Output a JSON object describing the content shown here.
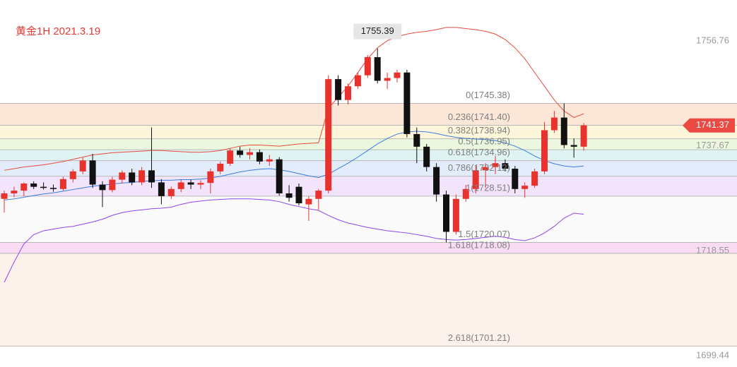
{
  "chart_data": {
    "type": "candlestick",
    "title": "黄金1H 2021.3.19",
    "ylim": [
      1697.4,
      1764.2
    ],
    "yticks": [
      1756.76,
      1737.67,
      1718.55,
      1699.44
    ],
    "grid": false,
    "up_color": "#e8322e",
    "down_color": "#111111",
    "open": [
      1728.0,
      1729.0,
      1729.5,
      1730.8,
      1730.2,
      1730.0,
      1729.8,
      1731.6,
      1733.0,
      1735.0,
      1730.6,
      1729.6,
      1731.5,
      1732.8,
      1731.0,
      1733.2,
      1731.0,
      1728.5,
      1729.8,
      1731.0,
      1730.6,
      1730.9,
      1733.0,
      1734.4,
      1736.8,
      1736.0,
      1736.5,
      1734.8,
      1735.2,
      1729.0,
      1730.2,
      1727.0,
      1728.0,
      1729.5,
      1749.8,
      1746.0,
      1748.5,
      1750.5,
      1753.8,
      1749.5,
      1750.0,
      1751.0,
      1739.8,
      1737.5,
      1733.8,
      1728.8,
      1722.0,
      1728.0,
      1729.8,
      1733.2,
      1733.8,
      1734.5,
      1733.5,
      1729.8,
      1730.4,
      1733.0,
      1740.5,
      1742.8,
      1737.8,
      1737.5
    ],
    "high": [
      1729.5,
      1730.2,
      1731.0,
      1731.2,
      1731.0,
      1730.6,
      1732.0,
      1733.4,
      1735.5,
      1736.2,
      1731.2,
      1732.0,
      1733.2,
      1733.5,
      1733.8,
      1741.0,
      1731.6,
      1730.2,
      1731.5,
      1731.5,
      1731.4,
      1733.5,
      1734.8,
      1737.2,
      1737.5,
      1737.2,
      1737.0,
      1736.0,
      1735.6,
      1730.5,
      1730.8,
      1728.5,
      1729.8,
      1750.5,
      1750.5,
      1749.0,
      1751.0,
      1754.2,
      1755.39,
      1751.0,
      1751.5,
      1751.5,
      1741.0,
      1738.0,
      1734.5,
      1729.5,
      1728.8,
      1730.5,
      1734.0,
      1734.5,
      1735.8,
      1735.2,
      1734.0,
      1731.0,
      1733.5,
      1742.0,
      1744.0,
      1745.38,
      1739.0,
      1741.8
    ],
    "low": [
      1725.5,
      1728.3,
      1728.5,
      1729.8,
      1729.7,
      1729.3,
      1729.5,
      1731.0,
      1732.5,
      1730.0,
      1726.5,
      1729.2,
      1730.8,
      1730.5,
      1730.5,
      1730.0,
      1727.0,
      1728.0,
      1729.2,
      1729.8,
      1729.8,
      1729.0,
      1732.5,
      1734.0,
      1735.5,
      1735.2,
      1734.3,
      1734.0,
      1728.6,
      1727.5,
      1726.8,
      1724.0,
      1726.0,
      1729.0,
      1745.0,
      1745.2,
      1748.0,
      1750.0,
      1749.0,
      1748.0,
      1749.2,
      1739.2,
      1734.5,
      1733.0,
      1727.5,
      1720.07,
      1721.5,
      1727.5,
      1729.0,
      1730.0,
      1732.5,
      1733.0,
      1729.0,
      1728.2,
      1730.0,
      1732.5,
      1740.0,
      1737.2,
      1735.5,
      1736.8
    ],
    "close": [
      1729.0,
      1729.5,
      1730.8,
      1730.2,
      1730.0,
      1729.8,
      1731.6,
      1733.0,
      1735.0,
      1730.6,
      1729.6,
      1731.5,
      1732.8,
      1731.0,
      1733.2,
      1731.0,
      1728.5,
      1729.8,
      1731.0,
      1730.6,
      1730.9,
      1733.0,
      1734.4,
      1736.8,
      1736.0,
      1736.5,
      1734.8,
      1735.2,
      1729.0,
      1728.2,
      1727.2,
      1728.0,
      1729.5,
      1749.8,
      1746.0,
      1748.5,
      1750.5,
      1753.8,
      1749.5,
      1750.0,
      1751.0,
      1739.8,
      1737.5,
      1733.8,
      1728.8,
      1722.0,
      1728.0,
      1729.8,
      1733.2,
      1733.8,
      1734.5,
      1733.5,
      1729.8,
      1730.4,
      1733.0,
      1740.5,
      1742.8,
      1737.8,
      1737.5,
      1741.37
    ],
    "bands": [
      {
        "color": "#e74c3c",
        "values": [
          1733.2,
          1733.5,
          1733.8,
          1734.0,
          1734.2,
          1734.5,
          1734.8,
          1735.2,
          1735.6,
          1736.0,
          1736.2,
          1736.4,
          1736.5,
          1736.6,
          1736.7,
          1736.8,
          1736.8,
          1736.7,
          1736.6,
          1736.5,
          1736.5,
          1736.6,
          1736.8,
          1737.2,
          1737.6,
          1737.8,
          1737.8,
          1737.7,
          1737.6,
          1737.8,
          1738.0,
          1738.1,
          1738.2,
          1744.5,
          1746.5,
          1748.5,
          1751.0,
          1753.5,
          1755.5,
          1756.8,
          1757.5,
          1758.0,
          1758.3,
          1758.5,
          1758.8,
          1759.2,
          1759.2,
          1759.0,
          1758.8,
          1758.5,
          1758.0,
          1757.0,
          1755.5,
          1753.5,
          1751.0,
          1748.5,
          1746.0,
          1744.0,
          1742.8,
          1743.5
        ]
      },
      {
        "color": "#3b7de0",
        "values": [
          1727.8,
          1728.0,
          1728.3,
          1728.6,
          1728.9,
          1729.1,
          1729.4,
          1729.7,
          1730.0,
          1730.3,
          1730.5,
          1730.7,
          1730.9,
          1731.0,
          1731.2,
          1731.3,
          1731.4,
          1731.4,
          1731.5,
          1731.5,
          1731.6,
          1731.8,
          1732.1,
          1732.5,
          1732.9,
          1733.2,
          1733.4,
          1733.5,
          1733.3,
          1733.0,
          1732.6,
          1732.2,
          1731.9,
          1732.5,
          1733.5,
          1734.5,
          1735.6,
          1736.8,
          1738.0,
          1739.0,
          1739.8,
          1740.2,
          1740.3,
          1740.2,
          1739.9,
          1739.5,
          1739.2,
          1739.0,
          1738.9,
          1738.8,
          1738.6,
          1738.2,
          1737.6,
          1736.8,
          1735.8,
          1735.0,
          1734.4,
          1734.0,
          1733.8,
          1734.0
        ]
      },
      {
        "color": "#8e44ec",
        "values": [
          1712.8,
          1716.5,
          1719.8,
          1721.5,
          1722.2,
          1722.5,
          1722.8,
          1723.0,
          1723.4,
          1723.8,
          1724.3,
          1725.0,
          1725.5,
          1725.8,
          1726.0,
          1726.2,
          1726.3,
          1726.5,
          1727.0,
          1727.4,
          1727.6,
          1727.8,
          1727.9,
          1728.0,
          1728.0,
          1728.0,
          1727.9,
          1727.8,
          1727.5,
          1727.0,
          1726.6,
          1726.2,
          1725.9,
          1725.0,
          1724.2,
          1723.6,
          1723.2,
          1722.8,
          1722.5,
          1722.2,
          1722.0,
          1721.8,
          1721.5,
          1721.2,
          1720.8,
          1720.6,
          1720.5,
          1720.6,
          1720.8,
          1721.0,
          1721.2,
          1721.0,
          1720.6,
          1720.4,
          1720.9,
          1721.8,
          1723.0,
          1724.5,
          1725.4,
          1725.2
        ]
      }
    ],
    "fib_levels": [
      {
        "label": "0(1745.38)",
        "value": 1745.38,
        "color": "#fbe6d8"
      },
      {
        "label": "0.236(1741.40)",
        "value": 1741.4,
        "color": "#fdf6da"
      },
      {
        "label": "0.382(1738.94)",
        "value": 1738.94,
        "color": "#ecf7df"
      },
      {
        "label": "0.5(1736.95)",
        "value": 1736.95,
        "color": "#e0f3f3"
      },
      {
        "label": "0.618(1734.96)",
        "value": 1734.96,
        "color": "#e3ecfa"
      },
      {
        "label": "0.786(1732.12)",
        "value": 1732.12,
        "color": "#f1e4fb"
      },
      {
        "label": "1(1728.51)",
        "value": 1728.51,
        "color": "#fafafa"
      },
      {
        "label": "1.5(1720.07)",
        "value": 1720.07,
        "color": "#f9dbf4"
      },
      {
        "label": "1.618(1718.08)",
        "value": 1718.08,
        "color": "#fdf1eb"
      },
      {
        "label": "2.618(1701.21)",
        "value": 1701.21
      }
    ],
    "high_mark": 1755.39,
    "last_price": 1741.37,
    "last_price_color": "#ea4a42"
  }
}
